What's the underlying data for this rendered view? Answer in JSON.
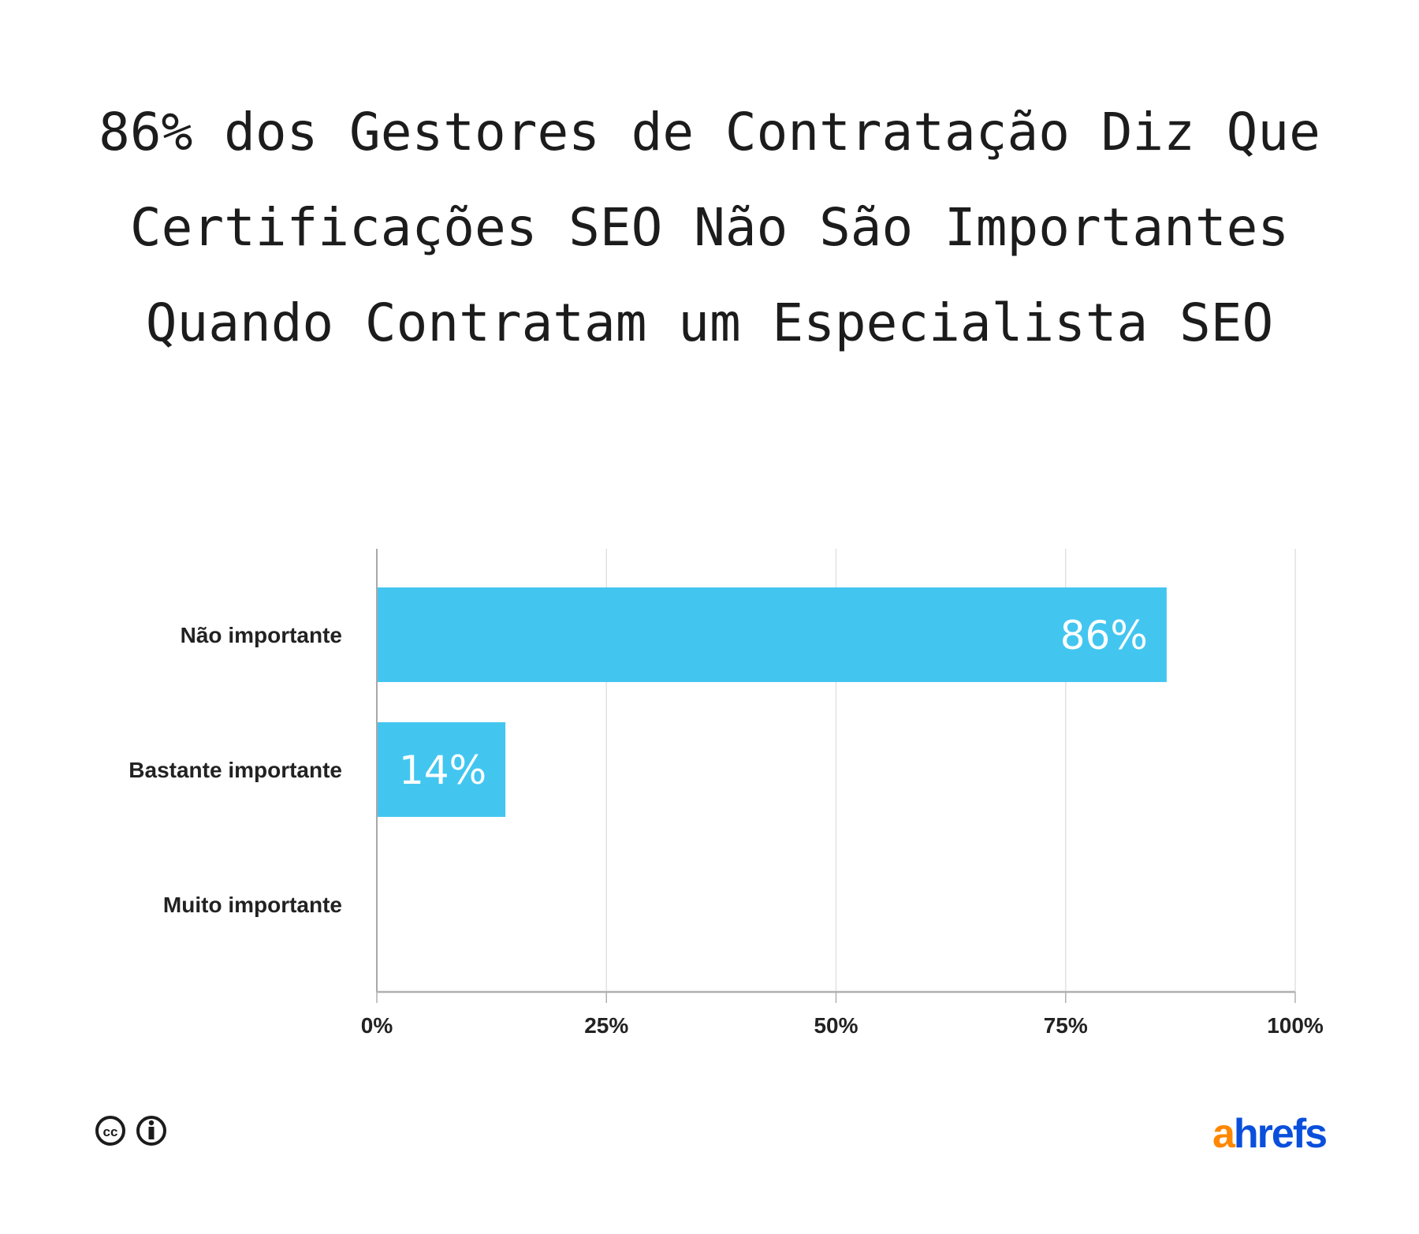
{
  "chart_data": {
    "type": "bar",
    "orientation": "horizontal",
    "title_lines": [
      "86% dos Gestores de Contratação Diz Que",
      "Certificações SEO Não São Importantes",
      "Quando Contratam um Especialista SEO"
    ],
    "categories": [
      "Não importante",
      "Bastante importante",
      "Muito importante"
    ],
    "values": [
      86,
      14,
      0
    ],
    "data_labels": [
      "86%",
      "14%",
      ""
    ],
    "xlim": [
      0,
      100
    ],
    "x_ticks": [
      0,
      25,
      50,
      75,
      100
    ],
    "x_tick_labels": [
      "0%",
      "25%",
      "50%",
      "75%",
      "100%"
    ],
    "grid": "vertical",
    "bar_color": "#42c6f0"
  },
  "footer": {
    "icons": [
      "creative-commons-icon",
      "attribution-icon"
    ],
    "logo": {
      "a": "a",
      "rest": "hrefs",
      "a_color": "#ff8800",
      "rest_color": "#0a4fdc"
    }
  }
}
